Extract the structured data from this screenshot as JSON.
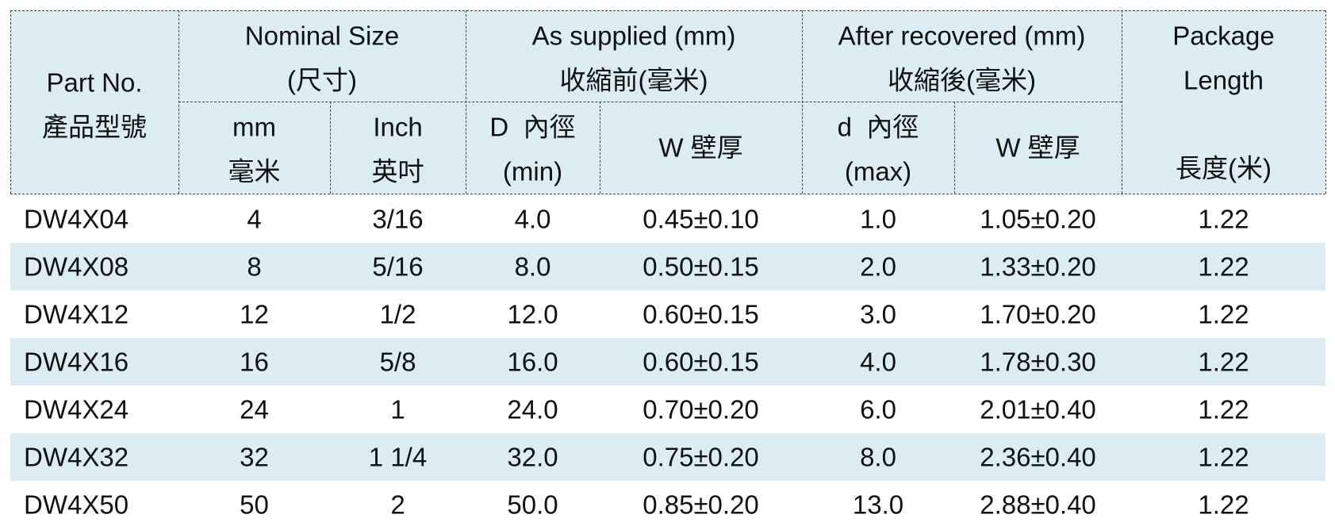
{
  "header": {
    "top": [
      [
        "Part No.",
        "產品型號"
      ],
      [
        "Nominal Size",
        "(尺寸)"
      ],
      [
        "As supplied (mm)",
        "收縮前(毫米)"
      ],
      [
        "After recovered (mm)",
        "收縮後(毫米)"
      ],
      [
        "Package",
        "Length",
        "長度(米)"
      ]
    ],
    "sub": [
      [
        "mm",
        "毫米"
      ],
      [
        "Inch",
        "英吋"
      ],
      [
        "D  內徑",
        "(min)"
      ],
      [
        "W 壁厚"
      ],
      [
        "d  內徑",
        "(max)"
      ],
      [
        "W 壁厚"
      ]
    ]
  },
  "table": {
    "rows": [
      [
        "DW4X04",
        "4",
        "3/16",
        "4.0",
        "0.45±0.10",
        "1.0",
        "1.05±0.20",
        "1.22"
      ],
      [
        "DW4X08",
        "8",
        "5/16",
        "8.0",
        "0.50±0.15",
        "2.0",
        "1.33±0.20",
        "1.22"
      ],
      [
        "DW4X12",
        "12",
        "1/2",
        "12.0",
        "0.60±0.15",
        "3.0",
        "1.70±0.20",
        "1.22"
      ],
      [
        "DW4X16",
        "16",
        "5/8",
        "16.0",
        "0.60±0.15",
        "4.0",
        "1.78±0.30",
        "1.22"
      ],
      [
        "DW4X24",
        "24",
        "1",
        "24.0",
        "0.70±0.20",
        "6.0",
        "2.01±0.40",
        "1.22"
      ],
      [
        "DW4X32",
        "32",
        "1 1/4",
        "32.0",
        "0.75±0.20",
        "8.0",
        "2.36±0.40",
        "1.22"
      ],
      [
        "DW4X50",
        "50",
        "2",
        "50.0",
        "0.85±0.20",
        "13.0",
        "2.88±0.40",
        "1.22"
      ]
    ]
  }
}
